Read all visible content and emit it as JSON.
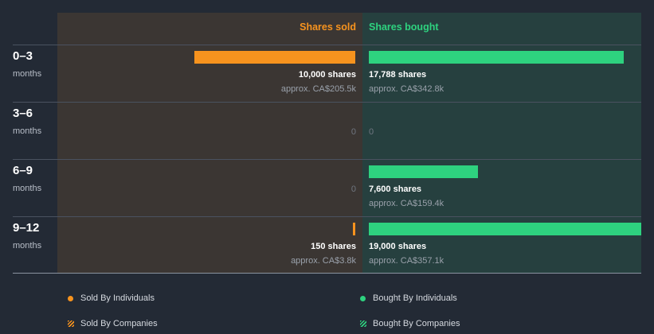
{
  "chart_data": {
    "type": "bar",
    "orientation": "horizontal",
    "columns": {
      "sold": "Shares sold",
      "bought": "Shares bought"
    },
    "max_shares": 19000,
    "rows": [
      {
        "period": "0–3",
        "unit": "months",
        "sold": {
          "shares": 10000,
          "shares_label": "10,000 shares",
          "approx": "approx. CA$205.5k",
          "zero": ""
        },
        "bought": {
          "shares": 17788,
          "shares_label": "17,788 shares",
          "approx": "approx. CA$342.8k",
          "zero": ""
        }
      },
      {
        "period": "3–6",
        "unit": "months",
        "sold": {
          "shares": 0,
          "shares_label": "",
          "approx": "",
          "zero": "0"
        },
        "bought": {
          "shares": 0,
          "shares_label": "",
          "approx": "",
          "zero": "0"
        }
      },
      {
        "period": "6–9",
        "unit": "months",
        "sold": {
          "shares": 0,
          "shares_label": "",
          "approx": "",
          "zero": "0"
        },
        "bought": {
          "shares": 7600,
          "shares_label": "7,600 shares",
          "approx": "approx. CA$159.4k",
          "zero": ""
        }
      },
      {
        "period": "9–12",
        "unit": "months",
        "sold": {
          "shares": 150,
          "shares_label": "150 shares",
          "approx": "approx. CA$3.8k",
          "zero": ""
        },
        "bought": {
          "shares": 19000,
          "shares_label": "19,000 shares",
          "approx": "approx. CA$357.1k",
          "zero": ""
        }
      }
    ],
    "legend": [
      {
        "label": "Sold By Individuals",
        "marker": "dot",
        "color": "#f7931e"
      },
      {
        "label": "Bought By Individuals",
        "marker": "dot",
        "color": "#2ed27f"
      },
      {
        "label": "Sold By Companies",
        "marker": "hatch",
        "color": "#f7931e"
      },
      {
        "label": "Bought By Companies",
        "marker": "hatch",
        "color": "#2ed27f"
      }
    ],
    "colors": {
      "sold": "#f7931e",
      "bought": "#2ed27f"
    }
  }
}
